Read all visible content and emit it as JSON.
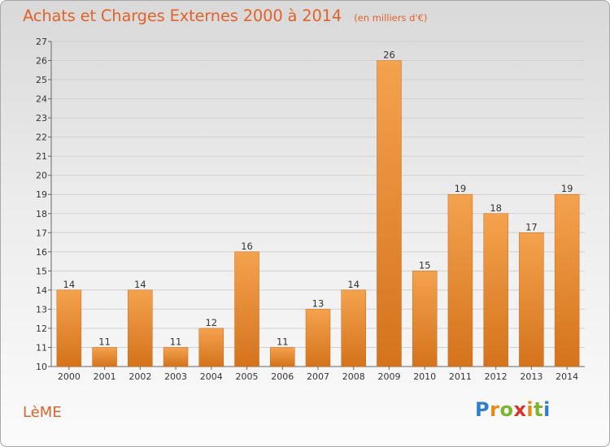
{
  "header": {
    "title": "Achats et Charges Externes 2000 à 2014",
    "subtitle": "(en milliers d'€)"
  },
  "footer": {
    "commune": "LèME",
    "brand_letters": [
      "P",
      "r",
      "o",
      "x",
      "i",
      "t",
      "i"
    ],
    "brand_colors": [
      "#2f7fd1",
      "#e88a1a",
      "#7bb62d",
      "#d9342b",
      "#e88a1a",
      "#7bb62d",
      "#2f7fd1"
    ]
  },
  "colors": {
    "accent": "#e0632c",
    "bar_light": "#f4a24e",
    "bar_dark": "#d4731c",
    "grid": "#d0d0d0",
    "text": "#333333"
  },
  "chart_data": {
    "type": "bar",
    "categories": [
      "2000",
      "2001",
      "2002",
      "2003",
      "2004",
      "2005",
      "2006",
      "2007",
      "2008",
      "2009",
      "2010",
      "2011",
      "2012",
      "2013",
      "2014"
    ],
    "values": [
      14,
      11,
      14,
      11,
      12,
      16,
      11,
      13,
      14,
      26,
      15,
      19,
      18,
      17,
      19
    ],
    "data_labels": [
      "14",
      "11",
      "14",
      "11",
      "12",
      "16",
      "11",
      "13",
      "14",
      "26",
      "15",
      "19",
      "18",
      "17",
      "19"
    ],
    "title": "Achats et Charges Externes 2000 à 2014",
    "xlabel": "",
    "ylabel": "",
    "ylim": [
      10,
      27
    ],
    "yticks": [
      10,
      11,
      12,
      13,
      14,
      15,
      16,
      17,
      18,
      19,
      20,
      21,
      22,
      23,
      24,
      25,
      26,
      27
    ],
    "grid": true,
    "legend": "none"
  }
}
